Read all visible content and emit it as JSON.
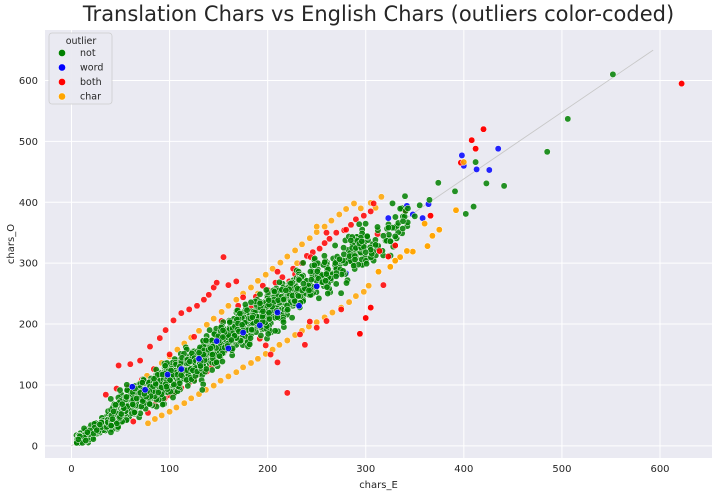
{
  "chart_data": {
    "type": "scatter",
    "title": "Translation Chars vs English Chars (outliers color-coded)",
    "xlabel": "chars_E",
    "ylabel": "chars_O",
    "xlim": [
      -27,
      653
    ],
    "ylim": [
      -20,
      683
    ],
    "xticks": [
      0,
      100,
      200,
      300,
      400,
      500,
      600
    ],
    "yticks": [
      0,
      100,
      200,
      300,
      400,
      500,
      600
    ],
    "grid": true,
    "legend": {
      "title": "outlier",
      "placement": "top-left",
      "entries": [
        {
          "name": "not",
          "color": "#008000"
        },
        {
          "name": "word",
          "color": "#0000ff"
        },
        {
          "name": "both",
          "color": "#ff0000"
        },
        {
          "name": "char",
          "color": "#ffa500"
        }
      ]
    },
    "reference_line": {
      "x": [
        0,
        593
      ],
      "y": [
        0,
        650
      ],
      "color": "#c8c8c8"
    },
    "series": [
      {
        "name": "not",
        "color": "#008000",
        "band": [
          {
            "from": 5,
            "to": 40,
            "n": 250,
            "slope": 1.1,
            "spread": 10
          },
          {
            "from": 40,
            "to": 130,
            "n": 700,
            "slope": 1.1,
            "spread": 22
          },
          {
            "from": 130,
            "to": 230,
            "n": 500,
            "slope": 1.1,
            "spread": 30
          },
          {
            "from": 230,
            "to": 300,
            "n": 180,
            "slope": 1.1,
            "spread": 32
          },
          {
            "from": 300,
            "to": 345,
            "n": 50,
            "slope": 1.08,
            "spread": 30
          }
        ],
        "points": [
          [
            552,
            610
          ],
          [
            506,
            537
          ],
          [
            485,
            483
          ],
          [
            441,
            427
          ],
          [
            423,
            431
          ],
          [
            412,
            466
          ],
          [
            410,
            393
          ],
          [
            402,
            381
          ],
          [
            391,
            418
          ],
          [
            374,
            432
          ],
          [
            365,
            404
          ],
          [
            355,
            395
          ],
          [
            350,
            377
          ],
          [
            343,
            390
          ],
          [
            338,
            369
          ],
          [
            330,
            344
          ],
          [
            325,
            336
          ],
          [
            318,
            345
          ],
          [
            310,
            330
          ],
          [
            305,
            322
          ],
          [
            300,
            318
          ],
          [
            296,
            336
          ],
          [
            289,
            306
          ]
        ]
      },
      {
        "name": "word",
        "color": "#0000ff",
        "points": [
          [
            62,
            97
          ],
          [
            75,
            92
          ],
          [
            98,
            117
          ],
          [
            112,
            126
          ],
          [
            130,
            143
          ],
          [
            148,
            172
          ],
          [
            160,
            160
          ],
          [
            175,
            186
          ],
          [
            192,
            198
          ],
          [
            210,
            219
          ],
          [
            232,
            230
          ],
          [
            250,
            262
          ],
          [
            270,
            281
          ],
          [
            280,
            283
          ],
          [
            293,
            323
          ],
          [
            300,
            340
          ],
          [
            323,
            374
          ],
          [
            342,
            394
          ],
          [
            348,
            380
          ],
          [
            358,
            374
          ],
          [
            364,
            397
          ],
          [
            398,
            477
          ],
          [
            400,
            460
          ],
          [
            413,
            454
          ],
          [
            426,
            453
          ],
          [
            435,
            488
          ],
          [
            138,
            152
          ],
          [
            205,
            214
          ]
        ]
      },
      {
        "name": "both",
        "color": "#ff0000",
        "points": [
          [
            622,
            595
          ],
          [
            420,
            520
          ],
          [
            412,
            488
          ],
          [
            408,
            502
          ],
          [
            397,
            465
          ],
          [
            366,
            378
          ],
          [
            330,
            329
          ],
          [
            323,
            311
          ],
          [
            314,
            320
          ],
          [
            305,
            227
          ],
          [
            300,
            210
          ],
          [
            294,
            184
          ],
          [
            275,
            224
          ],
          [
            260,
            205
          ],
          [
            250,
            194
          ],
          [
            243,
            204
          ],
          [
            238,
            166
          ],
          [
            233,
            183
          ],
          [
            222,
            248
          ],
          [
            220,
            87
          ],
          [
            210,
            137
          ],
          [
            203,
            150
          ],
          [
            198,
            165
          ],
          [
            192,
            176
          ],
          [
            185,
            190
          ],
          [
            180,
            200
          ],
          [
            172,
            180
          ],
          [
            165,
            170
          ],
          [
            158,
            158
          ],
          [
            150,
            145
          ],
          [
            143,
            132
          ],
          [
            138,
            122
          ],
          [
            130,
            118
          ],
          [
            125,
            109
          ],
          [
            120,
            104
          ],
          [
            112,
            95
          ],
          [
            105,
            88
          ],
          [
            100,
            83
          ],
          [
            95,
            78
          ],
          [
            85,
            68
          ],
          [
            78,
            54
          ],
          [
            63,
            40
          ],
          [
            60,
            78
          ],
          [
            50,
            65
          ],
          [
            45,
            55
          ],
          [
            40,
            38
          ],
          [
            48,
            132
          ],
          [
            60,
            134
          ],
          [
            70,
            140
          ],
          [
            80,
            163
          ],
          [
            90,
            177
          ],
          [
            96,
            190
          ],
          [
            104,
            206
          ],
          [
            112,
            218
          ],
          [
            120,
            224
          ],
          [
            128,
            230
          ],
          [
            135,
            240
          ],
          [
            140,
            248
          ],
          [
            145,
            260
          ],
          [
            148,
            268
          ],
          [
            155,
            310
          ],
          [
            160,
            264
          ],
          [
            168,
            270
          ],
          [
            170,
            230
          ],
          [
            175,
            244
          ],
          [
            183,
            226
          ],
          [
            188,
            245
          ],
          [
            195,
            263
          ],
          [
            200,
            256
          ],
          [
            208,
            268
          ],
          [
            215,
            277
          ],
          [
            222,
            270
          ],
          [
            228,
            282
          ],
          [
            232,
            276
          ],
          [
            235,
            300
          ],
          [
            240,
            312
          ],
          [
            246,
            318
          ],
          [
            253,
            324
          ],
          [
            258,
            333
          ],
          [
            263,
            340
          ],
          [
            270,
            350
          ],
          [
            278,
            354
          ],
          [
            285,
            363
          ],
          [
            290,
            372
          ],
          [
            298,
            378
          ],
          [
            305,
            385
          ],
          [
            308,
            398
          ],
          [
            340,
            386
          ],
          [
            312,
            348
          ],
          [
            318,
            264
          ],
          [
            280,
            355
          ],
          [
            260,
            350
          ],
          [
            244,
            310
          ],
          [
            226,
            291
          ],
          [
            210,
            286
          ],
          [
            153,
            205
          ],
          [
            125,
            179
          ],
          [
            100,
            150
          ],
          [
            84,
            126
          ],
          [
            72,
            109
          ],
          [
            58,
            96
          ],
          [
            46,
            94
          ],
          [
            35,
            84
          ]
        ]
      },
      {
        "name": "char",
        "color": "#ffa500",
        "points": [
          [
            400,
            466
          ],
          [
            392,
            387
          ],
          [
            375,
            355
          ],
          [
            368,
            345
          ],
          [
            363,
            328
          ],
          [
            360,
            365
          ],
          [
            348,
            319
          ],
          [
            342,
            320
          ],
          [
            335,
            310
          ],
          [
            330,
            304
          ],
          [
            325,
            294
          ],
          [
            313,
            286
          ],
          [
            303,
            263
          ],
          [
            298,
            253
          ],
          [
            290,
            246
          ],
          [
            283,
            236
          ],
          [
            275,
            227
          ],
          [
            266,
            219
          ],
          [
            258,
            211
          ],
          [
            250,
            203
          ],
          [
            242,
            196
          ],
          [
            235,
            189
          ],
          [
            228,
            182
          ],
          [
            220,
            173
          ],
          [
            212,
            166
          ],
          [
            205,
            158
          ],
          [
            198,
            151
          ],
          [
            190,
            143
          ],
          [
            183,
            136
          ],
          [
            175,
            129
          ],
          [
            168,
            121
          ],
          [
            160,
            114
          ],
          [
            152,
            107
          ],
          [
            145,
            99
          ],
          [
            137,
            92
          ],
          [
            130,
            85
          ],
          [
            122,
            78
          ],
          [
            115,
            70
          ],
          [
            107,
            63
          ],
          [
            100,
            56
          ],
          [
            92,
            50
          ],
          [
            85,
            44
          ],
          [
            78,
            37
          ],
          [
            55,
            80
          ],
          [
            62,
            94
          ],
          [
            70,
            104
          ],
          [
            77,
            115
          ],
          [
            85,
            126
          ],
          [
            92,
            136
          ],
          [
            100,
            147
          ],
          [
            108,
            158
          ],
          [
            115,
            168
          ],
          [
            122,
            178
          ],
          [
            130,
            189
          ],
          [
            138,
            199
          ],
          [
            145,
            209
          ],
          [
            153,
            220
          ],
          [
            160,
            230
          ],
          [
            168,
            240
          ],
          [
            175,
            250
          ],
          [
            183,
            260
          ],
          [
            190,
            271
          ],
          [
            198,
            281
          ],
          [
            205,
            291
          ],
          [
            213,
            301
          ],
          [
            220,
            311
          ],
          [
            228,
            321
          ],
          [
            235,
            331
          ],
          [
            243,
            341
          ],
          [
            250,
            351
          ],
          [
            258,
            360
          ],
          [
            265,
            370
          ],
          [
            273,
            380
          ],
          [
            280,
            389
          ],
          [
            288,
            398
          ],
          [
            295,
            390
          ],
          [
            230,
            300
          ],
          [
            190,
            250
          ],
          [
            310,
            391
          ],
          [
            316,
            409
          ],
          [
            305,
            399
          ],
          [
            250,
            360
          ]
        ]
      }
    ]
  }
}
